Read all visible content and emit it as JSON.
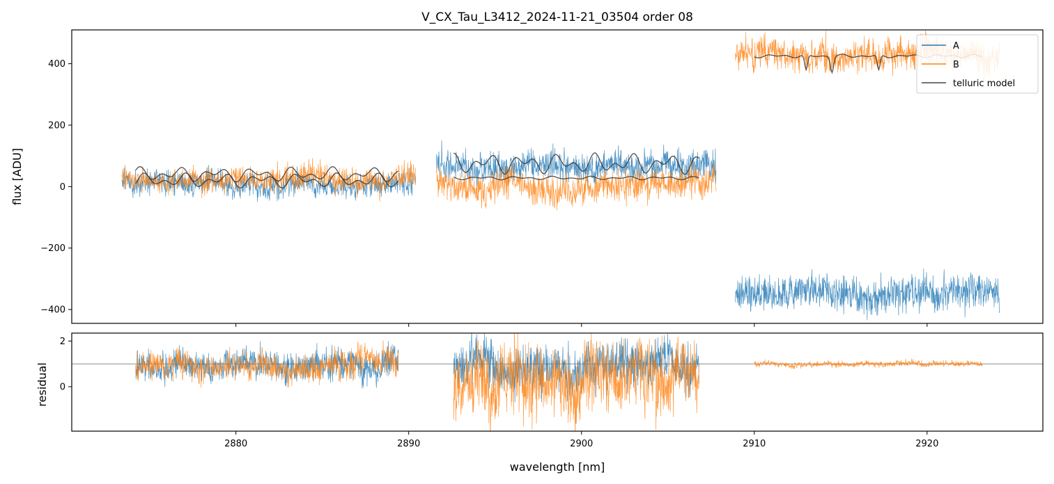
{
  "chart_data": {
    "type": "line",
    "title": "V_CX_Tau_L3412_2024-11-21_03504  order 08",
    "xlabel": "wavelength [nm]",
    "xlim": [
      2870.5,
      2926.7
    ],
    "xticks": [
      2880,
      2890,
      2900,
      2910,
      2920
    ],
    "colors": {
      "A": "#1f77b4",
      "B": "#ff7f0e",
      "model": "#333333",
      "reference": "#666666"
    },
    "legend": {
      "position": "top-right",
      "entries": [
        {
          "name": "A",
          "color": "#1f77b4"
        },
        {
          "name": "B",
          "color": "#ff7f0e"
        },
        {
          "name": "telluric model",
          "color": "#444444"
        }
      ]
    },
    "panels": [
      {
        "id": "flux",
        "ylabel": "flux [ADU]",
        "ylim": [
          -445,
          510
        ],
        "yticks": [
          400,
          200,
          0,
          -200,
          -400
        ],
        "ytick_labels": [
          "400",
          "200",
          "0",
          "−200",
          "−400"
        ],
        "series": [
          {
            "name": "A",
            "color": "#1f77b4",
            "segments": [
              {
                "x_range": [
                  2873.4,
                  2890.4
                ],
                "level": 8,
                "noise": 28,
                "seed": 11
              },
              {
                "x_range": [
                  2891.6,
                  2907.8
                ],
                "level": 65,
                "noise": 35,
                "seed": 12
              },
              {
                "x_range": [
                  2908.9,
                  2924.2
                ],
                "level": -345,
                "noise": 40,
                "seed": 13
              }
            ]
          },
          {
            "name": "B",
            "color": "#ff7f0e",
            "segments": [
              {
                "x_range": [
                  2873.4,
                  2890.4
                ],
                "level": 28,
                "noise": 28,
                "seed": 21
              },
              {
                "x_range": [
                  2891.6,
                  2907.8
                ],
                "level": 5,
                "noise": 35,
                "seed": 22
              },
              {
                "x_range": [
                  2908.9,
                  2924.2
                ],
                "level": 425,
                "noise": 35,
                "seed": 23
              }
            ]
          },
          {
            "name": "telluric model",
            "color": "#333333",
            "segments": [
              {
                "x_range": [
                  2874.2,
                  2889.4
                ],
                "level": 20,
                "amp": 25,
                "seed": 31
              },
              {
                "x_range": [
                  2874.2,
                  2889.4
                ],
                "level": 40,
                "amp": 25,
                "seed": 32
              },
              {
                "x_range": [
                  2892.6,
                  2906.8
                ],
                "level": 75,
                "amp": 35,
                "seed": 33
              },
              {
                "x_range": [
                  2892.6,
                  2906.8
                ],
                "level": 28,
                "amp": 6,
                "seed": 34
              },
              {
                "x_range": [
                  2910.0,
                  2923.2
                ],
                "level": 425,
                "amp": 6,
                "seed": 35,
                "dips": [
                  2913.0,
                  2914.5,
                  2917.2
                ]
              }
            ]
          }
        ]
      },
      {
        "id": "residual",
        "ylabel": "residual",
        "ylim": [
          -1.95,
          2.35
        ],
        "yticks": [
          2,
          0
        ],
        "ytick_labels": [
          "2",
          "0"
        ],
        "reference_line": 1,
        "series": [
          {
            "name": "A",
            "color": "#1f77b4",
            "segments": [
              {
                "x_range": [
                  2874.2,
                  2889.4
                ],
                "level": 0.95,
                "noise": 0.45,
                "seed": 41
              },
              {
                "x_range": [
                  2892.6,
                  2906.8
                ],
                "level": 0.95,
                "noise": 0.7,
                "seed": 42
              }
            ]
          },
          {
            "name": "B",
            "color": "#ff7f0e",
            "segments": [
              {
                "x_range": [
                  2874.2,
                  2889.4
                ],
                "level": 0.95,
                "noise": 0.45,
                "seed": 51
              },
              {
                "x_range": [
                  2892.6,
                  2906.8
                ],
                "level": 0.3,
                "noise": 1.1,
                "seed": 52
              },
              {
                "x_range": [
                  2910.0,
                  2923.2
                ],
                "level": 1.0,
                "noise": 0.09,
                "seed": 53
              }
            ]
          }
        ]
      }
    ]
  }
}
